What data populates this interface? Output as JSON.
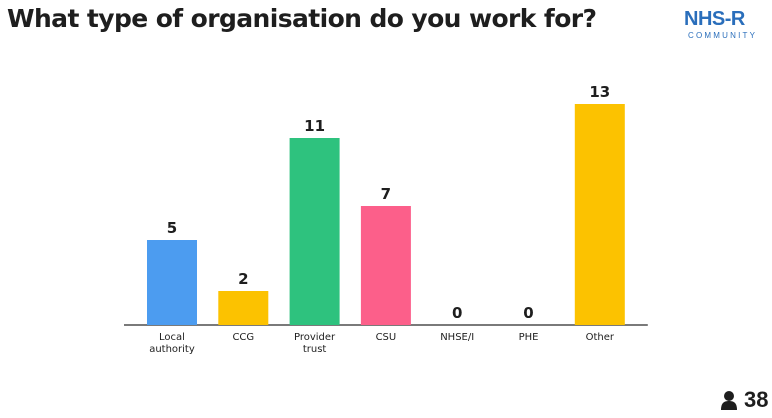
{
  "title": "What type of organisation do you work for?",
  "logo": {
    "main": "NHS-R",
    "sub": "COMMUNITY"
  },
  "participants": {
    "count": "38",
    "icon": "person-icon"
  },
  "chart_data": {
    "type": "bar",
    "categories": [
      [
        "Local",
        "authority"
      ],
      [
        "CCG"
      ],
      [
        "Provider",
        "trust"
      ],
      [
        "CSU"
      ],
      [
        "NHSE/I"
      ],
      [
        "PHE"
      ],
      [
        "Other"
      ]
    ],
    "values": [
      5,
      2,
      11,
      7,
      0,
      0,
      13
    ],
    "colors": [
      "#4c9cf0",
      "#fcc200",
      "#2ec27e",
      "#fc5f8a",
      "#4c9cf0",
      "#4c9cf0",
      "#fcc200"
    ],
    "ylim": [
      0,
      13
    ],
    "grid": false,
    "legend": "none"
  }
}
